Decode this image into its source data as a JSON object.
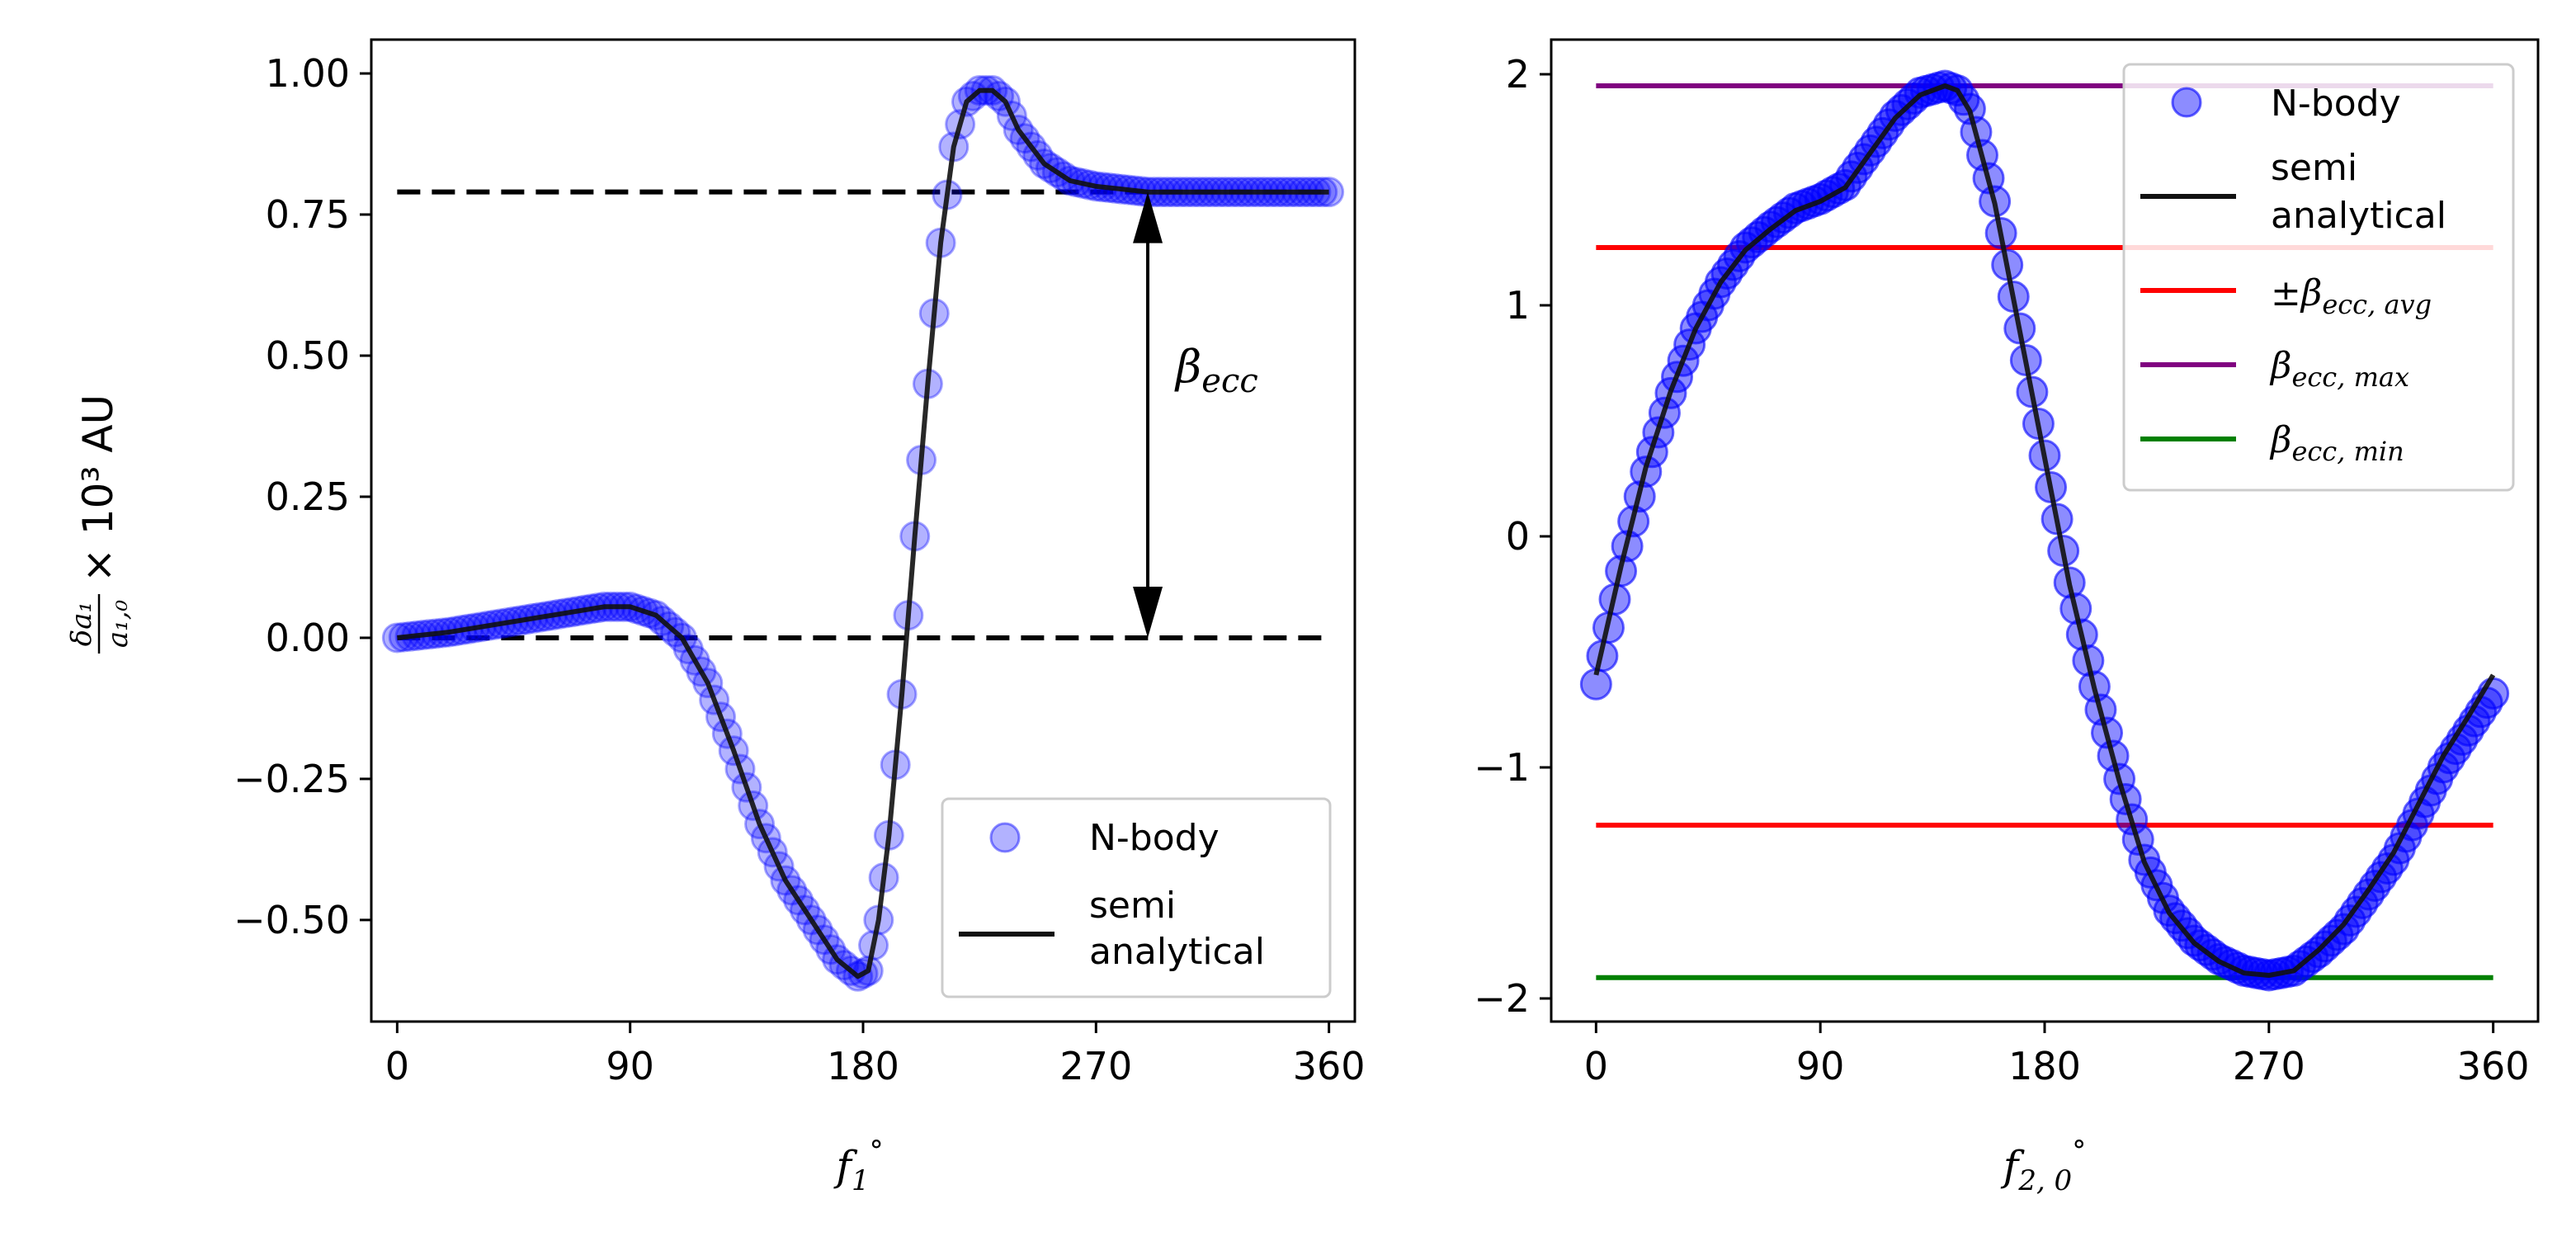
{
  "chart_data": [
    {
      "type": "scatter",
      "panel": "left",
      "xlabel_base": "f",
      "xlabel_sub": "1",
      "xlabel_sup": "°",
      "ylabel_frac_num": "δa₁",
      "ylabel_frac_den": "a₁,₀",
      "ylabel_rest": "× 10³ AU",
      "xlim": [
        -10,
        370
      ],
      "ylim": [
        -0.68,
        1.06
      ],
      "xticks": [
        0,
        90,
        180,
        270,
        360
      ],
      "xtick_labels": [
        "0",
        "90",
        "180",
        "270",
        "360"
      ],
      "yticks": [
        1.0,
        0.75,
        0.5,
        0.25,
        0.0,
        -0.25,
        -0.5
      ],
      "ytick_labels": [
        "1.00",
        "0.75",
        "0.50",
        "0.25",
        "0.00",
        "−0.25",
        "−0.50"
      ],
      "series": [
        {
          "name": "N-body",
          "kind": "scatter",
          "color": "#0000ff",
          "x": [
            0,
            20,
            40,
            60,
            80,
            90,
            100,
            110,
            120,
            130,
            140,
            150,
            160,
            170,
            178,
            182,
            186,
            190,
            195,
            200,
            205,
            210,
            215,
            220,
            225,
            230,
            235,
            240,
            250,
            260,
            270,
            280,
            290,
            300,
            320,
            340,
            360
          ],
          "y": [
            0.0,
            0.01,
            0.025,
            0.04,
            0.055,
            0.055,
            0.04,
            0.0,
            -0.08,
            -0.2,
            -0.33,
            -0.43,
            -0.5,
            -0.57,
            -0.6,
            -0.59,
            -0.5,
            -0.35,
            -0.1,
            0.18,
            0.45,
            0.7,
            0.87,
            0.95,
            0.97,
            0.97,
            0.95,
            0.9,
            0.84,
            0.81,
            0.8,
            0.795,
            0.79,
            0.79,
            0.79,
            0.79,
            0.79
          ]
        },
        {
          "name": "semi\nanalytical",
          "kind": "line",
          "color": "#111111",
          "x": [
            0,
            20,
            40,
            60,
            80,
            90,
            100,
            110,
            120,
            130,
            140,
            150,
            160,
            170,
            178,
            182,
            186,
            190,
            195,
            200,
            205,
            210,
            215,
            220,
            225,
            230,
            235,
            240,
            250,
            260,
            270,
            280,
            290,
            300,
            320,
            340,
            360
          ],
          "y": [
            0.0,
            0.01,
            0.025,
            0.04,
            0.055,
            0.055,
            0.04,
            0.0,
            -0.08,
            -0.2,
            -0.33,
            -0.43,
            -0.5,
            -0.57,
            -0.6,
            -0.59,
            -0.5,
            -0.35,
            -0.1,
            0.18,
            0.45,
            0.7,
            0.87,
            0.95,
            0.97,
            0.97,
            0.95,
            0.9,
            0.84,
            0.81,
            0.8,
            0.795,
            0.79,
            0.79,
            0.79,
            0.79,
            0.79
          ]
        }
      ],
      "hlines": [
        {
          "y": 0.79,
          "x": [
            0,
            360
          ],
          "style": "dashed",
          "color": "#000000"
        },
        {
          "y": 0.0,
          "x": [
            0,
            360
          ],
          "style": "dashed",
          "color": "#000000"
        }
      ],
      "annotation": {
        "label": "β",
        "label_sub": "ecc",
        "x": 290,
        "y_from": 0.0,
        "y_to": 0.79,
        "arrow": "double"
      },
      "legend": {
        "location": "lower-right",
        "entries": [
          "N-body",
          "semi",
          "analytical"
        ]
      }
    },
    {
      "type": "scatter",
      "panel": "right",
      "xlabel_base": "f",
      "xlabel_sub": "2, 0",
      "xlabel_sup": "°",
      "xlim": [
        -18,
        378
      ],
      "ylim": [
        -2.1,
        2.15
      ],
      "xticks": [
        0,
        90,
        180,
        270,
        360
      ],
      "xtick_labels": [
        "0",
        "90",
        "180",
        "270",
        "360"
      ],
      "yticks": [
        2,
        1,
        0,
        -1,
        -2
      ],
      "ytick_labels": [
        "2",
        "1",
        "0",
        "−1",
        "−2"
      ],
      "series": [
        {
          "name": "N-body",
          "kind": "scatter",
          "color": "#0000ff",
          "x": [
            0,
            10,
            20,
            30,
            40,
            50,
            60,
            70,
            80,
            90,
            100,
            110,
            120,
            130,
            140,
            145,
            150,
            160,
            170,
            180,
            190,
            200,
            210,
            220,
            230,
            240,
            250,
            260,
            270,
            280,
            290,
            300,
            310,
            320,
            330,
            340,
            350,
            360
          ],
          "y": [
            -0.64,
            -0.15,
            0.28,
            0.62,
            0.9,
            1.1,
            1.25,
            1.34,
            1.42,
            1.46,
            1.52,
            1.67,
            1.82,
            1.92,
            1.95,
            1.93,
            1.85,
            1.45,
            0.9,
            0.35,
            -0.2,
            -0.65,
            -1.05,
            -1.4,
            -1.62,
            -1.75,
            -1.83,
            -1.88,
            -1.9,
            -1.88,
            -1.8,
            -1.7,
            -1.55,
            -1.4,
            -1.2,
            -1.0,
            -0.84,
            -0.68
          ]
        },
        {
          "name": "semi\nanalytical",
          "kind": "line",
          "color": "#111111",
          "x": [
            0,
            10,
            20,
            30,
            40,
            50,
            60,
            70,
            80,
            90,
            100,
            110,
            120,
            130,
            140,
            145,
            150,
            160,
            170,
            180,
            190,
            200,
            210,
            220,
            230,
            240,
            250,
            260,
            270,
            280,
            290,
            300,
            310,
            320,
            330,
            340,
            350,
            360
          ],
          "y": [
            -0.6,
            -0.13,
            0.3,
            0.63,
            0.9,
            1.1,
            1.24,
            1.33,
            1.41,
            1.45,
            1.51,
            1.66,
            1.81,
            1.91,
            1.95,
            1.93,
            1.84,
            1.44,
            0.89,
            0.34,
            -0.21,
            -0.66,
            -1.06,
            -1.41,
            -1.63,
            -1.76,
            -1.84,
            -1.89,
            -1.9,
            -1.88,
            -1.79,
            -1.68,
            -1.53,
            -1.37,
            -1.16,
            -0.95,
            -0.78,
            -0.6
          ]
        }
      ],
      "hlines": [
        {
          "name": "β_ecc,max",
          "y": 1.95,
          "x": [
            0,
            360
          ],
          "color": "#800080"
        },
        {
          "name": "±β_ecc,avg",
          "y": 1.25,
          "x": [
            0,
            360
          ],
          "color": "#ff0000"
        },
        {
          "name": "±β_ecc,avg (neg)",
          "y": -1.25,
          "x": [
            0,
            360
          ],
          "color": "#ff0000"
        },
        {
          "name": "β_ecc,min",
          "y": -1.91,
          "x": [
            0,
            360
          ],
          "color": "#008000"
        }
      ],
      "legend": {
        "location": "upper-right",
        "entries": [
          "N-body",
          "semi",
          "analytical",
          "±β",
          "ecc, avg",
          "β",
          "ecc, max",
          "β",
          "ecc, min"
        ]
      }
    }
  ]
}
